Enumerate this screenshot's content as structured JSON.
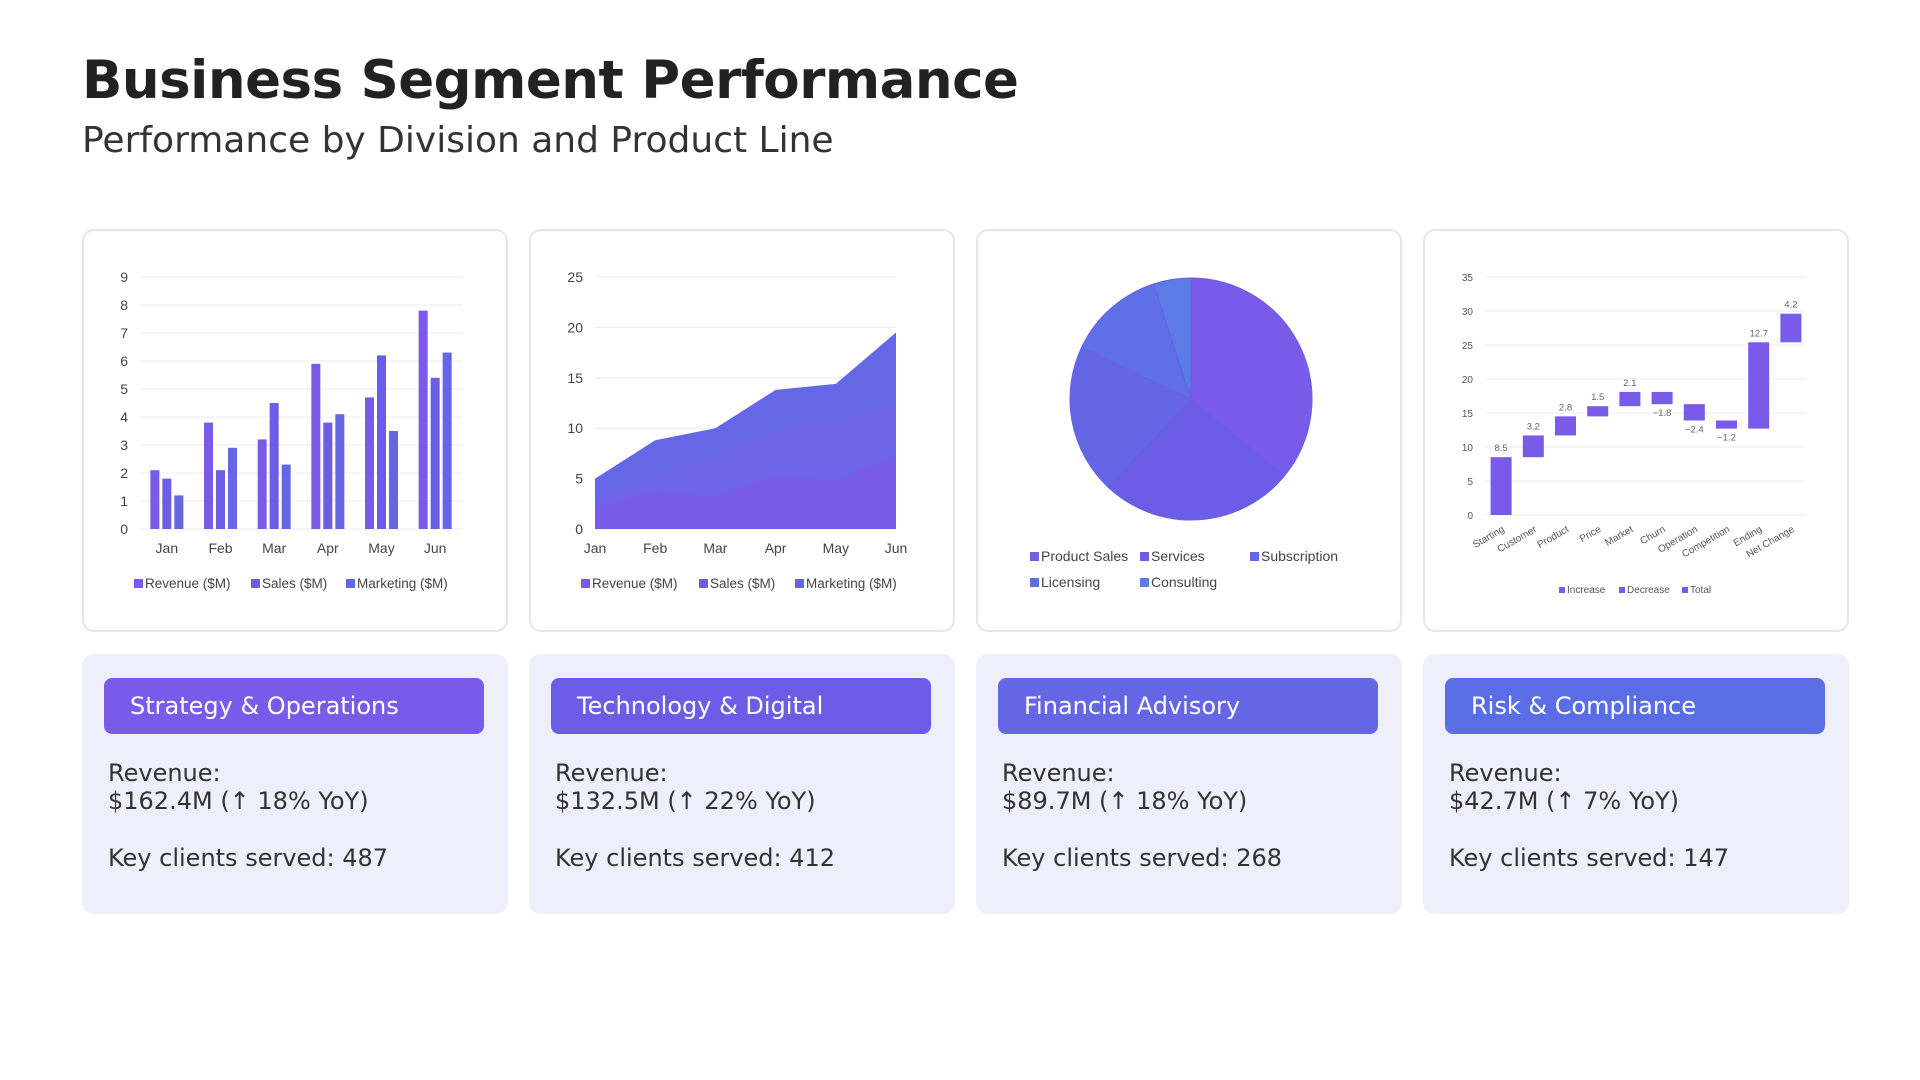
{
  "page": {
    "title": "Business Segment Performance",
    "subtitle": "Performance by Division and Product Line"
  },
  "colors": {
    "accent": "#6a5ae6",
    "card_bg": "#efeefb",
    "series": [
      "#7a5ae8",
      "#6c5de6",
      "#6466e6",
      "#5f6fe6",
      "#5b7be7"
    ]
  },
  "chart_data": [
    {
      "type": "bar",
      "categories": [
        "Jan",
        "Feb",
        "Mar",
        "Apr",
        "May",
        "Jun"
      ],
      "series": [
        {
          "name": "Revenue ($M)",
          "values": [
            2.1,
            3.8,
            3.2,
            5.9,
            4.7,
            7.8
          ]
        },
        {
          "name": "Sales ($M)",
          "values": [
            1.8,
            2.1,
            4.5,
            3.8,
            6.2,
            5.4
          ]
        },
        {
          "name": "Marketing ($M)",
          "values": [
            1.2,
            2.9,
            2.3,
            4.1,
            3.5,
            6.3
          ]
        }
      ],
      "ylim": [
        0,
        9
      ],
      "yticks": [
        0,
        1,
        2,
        3,
        4,
        5,
        6,
        7,
        8,
        9
      ],
      "grid": true,
      "legend": "bottom"
    },
    {
      "type": "area",
      "categories": [
        "Jan",
        "Feb",
        "Mar",
        "Apr",
        "May",
        "Jun"
      ],
      "series": [
        {
          "name": "Revenue ($M)",
          "values": [
            5,
            8.8,
            10,
            13.8,
            14.4,
            19.5
          ]
        },
        {
          "name": "Sales ($M)",
          "values": [
            3.2,
            5.5,
            7.5,
            9.8,
            10.8,
            12.9
          ]
        },
        {
          "name": "Marketing ($M)",
          "values": [
            2,
            3.8,
            3.3,
            5.2,
            4.9,
            7.2
          ]
        }
      ],
      "ylim": [
        0,
        25
      ],
      "yticks": [
        0,
        5,
        10,
        15,
        20,
        25
      ],
      "grid": true,
      "legend": "bottom"
    },
    {
      "type": "pie",
      "series": [
        {
          "name": "Product Sales",
          "value": 36
        },
        {
          "name": "Services",
          "value": 26
        },
        {
          "name": "Subscription",
          "value": 20
        },
        {
          "name": "Licensing",
          "value": 13
        },
        {
          "name": "Consulting",
          "value": 5
        }
      ],
      "legend": "bottom"
    },
    {
      "type": "bar",
      "subtype": "waterfall",
      "categories": [
        "Starting",
        "Customer",
        "Product",
        "Price",
        "Market",
        "Churn",
        "Operation",
        "Competition",
        "Ending",
        "Net Change"
      ],
      "values": [
        8.5,
        3.2,
        2.8,
        1.5,
        2.1,
        -1.8,
        -2.4,
        -1.2,
        12.7,
        4.2
      ],
      "labels": [
        "8.5",
        "3.2",
        "2.8",
        "1.5",
        "2.1",
        "−1.8",
        "−2.4",
        "−1.2",
        "12.7",
        "4.2"
      ],
      "ylim": [
        0,
        35
      ],
      "yticks": [
        0,
        5,
        10,
        15,
        20,
        25,
        30,
        35
      ],
      "legend_entries": [
        "Increase",
        "Decrease",
        "Total"
      ],
      "grid": true,
      "legend": "bottom"
    }
  ],
  "segments": [
    {
      "name": "Strategy & Operations",
      "revenue_label": "Revenue:",
      "revenue_value": "$162.4M (↑ 18% YoY)",
      "clients": "Key clients served: 487",
      "color": "#7a5ae8"
    },
    {
      "name": "Technology & Digital",
      "revenue_label": "Revenue:",
      "revenue_value": "$132.5M (↑ 22% YoY)",
      "clients": "Key clients served: 412",
      "color": "#6c5de6"
    },
    {
      "name": "Financial Advisory",
      "revenue_label": "Revenue:",
      "revenue_value": "$89.7M (↑ 18% YoY)",
      "clients": "Key clients served: 268",
      "color": "#6466e6"
    },
    {
      "name": "Risk & Compliance",
      "revenue_label": "Revenue:",
      "revenue_value": "$42.7M (↑ 7% YoY)",
      "clients": "Key clients served: 147",
      "color": "#5b6de6"
    }
  ]
}
